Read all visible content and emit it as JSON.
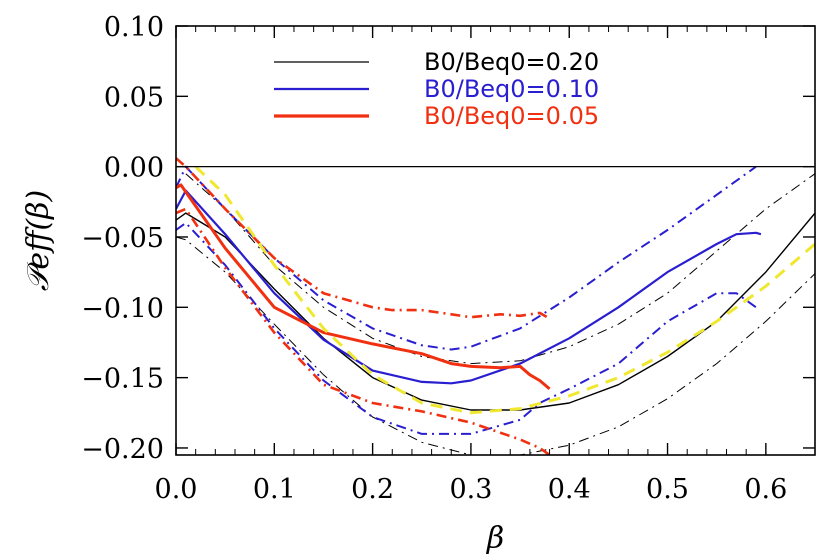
{
  "chart_data": {
    "type": "line",
    "title": "",
    "xlabel": "β",
    "ylabel": "𝒫eff(β)",
    "xlim": [
      0.0,
      0.65
    ],
    "ylim": [
      -0.205,
      0.1
    ],
    "x_ticks": [
      "0.0",
      "0.1",
      "0.2",
      "0.3",
      "0.4",
      "0.5",
      "0.6"
    ],
    "y_ticks": [
      "0.10",
      "0.05",
      "0.00",
      "−0.05",
      "−0.10",
      "−0.15",
      "−0.20"
    ],
    "reference_line": {
      "y": 0.0,
      "color": "#000000"
    },
    "legend": [
      {
        "label": "B0/Beq0=0.20",
        "color": "#000000"
      },
      {
        "label": "B0/Beq0=0.10",
        "color": "#2a1fd0"
      },
      {
        "label": "B0/Beq0=0.05",
        "color": "#f03010"
      }
    ],
    "series": [
      {
        "name": "B0/Beq0=0.20",
        "style": "solid",
        "color": "#000000",
        "width": 1.4,
        "x": [
          0.0,
          0.01,
          0.05,
          0.1,
          0.15,
          0.2,
          0.25,
          0.3,
          0.35,
          0.4,
          0.45,
          0.5,
          0.55,
          0.6,
          0.65
        ],
        "y": [
          -0.038,
          -0.033,
          -0.05,
          -0.087,
          -0.122,
          -0.15,
          -0.166,
          -0.173,
          -0.173,
          -0.168,
          -0.155,
          -0.135,
          -0.11,
          -0.075,
          -0.033
        ]
      },
      {
        "name": "B0/Beq0=0.20 upper",
        "style": "dashdot",
        "color": "#000000",
        "width": 1.0,
        "x": [
          0.01,
          0.05,
          0.1,
          0.15,
          0.2,
          0.25,
          0.3,
          0.35,
          0.4,
          0.45,
          0.5,
          0.55,
          0.6,
          0.65
        ],
        "y": [
          -0.005,
          -0.03,
          -0.07,
          -0.1,
          -0.122,
          -0.135,
          -0.14,
          -0.138,
          -0.128,
          -0.112,
          -0.09,
          -0.06,
          -0.03,
          -0.005
        ]
      },
      {
        "name": "B0/Beq0=0.20 lower",
        "style": "dashdot",
        "color": "#000000",
        "width": 1.0,
        "x": [
          0.0,
          0.01,
          0.05,
          0.1,
          0.15,
          0.2,
          0.25,
          0.3,
          0.35,
          0.4,
          0.45,
          0.5,
          0.55,
          0.6,
          0.65
        ],
        "y": [
          -0.05,
          -0.052,
          -0.075,
          -0.112,
          -0.148,
          -0.178,
          -0.196,
          -0.205,
          -0.205,
          -0.198,
          -0.185,
          -0.165,
          -0.14,
          -0.11,
          -0.076
        ]
      },
      {
        "name": "B0/Beq0=0.10",
        "style": "solid",
        "color": "#2a1fd0",
        "width": 2.2,
        "x": [
          0.0,
          0.01,
          0.05,
          0.1,
          0.15,
          0.2,
          0.25,
          0.28,
          0.3,
          0.35,
          0.4,
          0.45,
          0.5,
          0.55,
          0.57,
          0.59,
          0.595
        ],
        "y": [
          -0.03,
          -0.017,
          -0.048,
          -0.09,
          -0.123,
          -0.145,
          -0.153,
          -0.154,
          -0.152,
          -0.14,
          -0.122,
          -0.1,
          -0.075,
          -0.055,
          -0.048,
          -0.047,
          -0.048
        ]
      },
      {
        "name": "B0/Beq0=0.10 upper",
        "style": "dashdot",
        "color": "#2a1fd0",
        "width": 2.0,
        "x": [
          0.0,
          0.01,
          0.05,
          0.1,
          0.15,
          0.2,
          0.25,
          0.28,
          0.3,
          0.35,
          0.4,
          0.45,
          0.5,
          0.55,
          0.58,
          0.59
        ],
        "y": [
          -0.015,
          0.0,
          -0.03,
          -0.065,
          -0.095,
          -0.115,
          -0.127,
          -0.13,
          -0.128,
          -0.115,
          -0.093,
          -0.068,
          -0.045,
          -0.02,
          -0.005,
          0.0
        ]
      },
      {
        "name": "B0/Beq0=0.10 lower",
        "style": "dashdot",
        "color": "#2a1fd0",
        "width": 2.0,
        "x": [
          0.0,
          0.01,
          0.05,
          0.1,
          0.15,
          0.2,
          0.25,
          0.3,
          0.35,
          0.37,
          0.4,
          0.45,
          0.5,
          0.55,
          0.57,
          0.59
        ],
        "y": [
          -0.045,
          -0.04,
          -0.07,
          -0.115,
          -0.152,
          -0.178,
          -0.19,
          -0.19,
          -0.18,
          -0.168,
          -0.158,
          -0.14,
          -0.11,
          -0.09,
          -0.09,
          -0.1
        ]
      },
      {
        "name": "B0/Beq0=0.05",
        "style": "solid",
        "color": "#f03010",
        "width": 3.0,
        "x": [
          0.0,
          0.005,
          0.01,
          0.05,
          0.1,
          0.15,
          0.2,
          0.25,
          0.28,
          0.3,
          0.33,
          0.35,
          0.36,
          0.37,
          0.38
        ],
        "y": [
          -0.015,
          -0.013,
          -0.018,
          -0.058,
          -0.1,
          -0.118,
          -0.126,
          -0.133,
          -0.14,
          -0.142,
          -0.143,
          -0.142,
          -0.148,
          -0.152,
          -0.158
        ]
      },
      {
        "name": "B0/Beq0=0.05 upper",
        "style": "dashdot",
        "color": "#f03010",
        "width": 2.6,
        "x": [
          0.0,
          0.01,
          0.05,
          0.1,
          0.15,
          0.2,
          0.22,
          0.25,
          0.28,
          0.3,
          0.33,
          0.35,
          0.37,
          0.38
        ],
        "y": [
          0.006,
          0.0,
          -0.03,
          -0.065,
          -0.09,
          -0.1,
          -0.102,
          -0.102,
          -0.105,
          -0.107,
          -0.105,
          -0.106,
          -0.104,
          -0.108
        ]
      },
      {
        "name": "B0/Beq0=0.05 lower",
        "style": "dashdot",
        "color": "#f03010",
        "width": 2.6,
        "x": [
          0.0,
          0.01,
          0.05,
          0.1,
          0.15,
          0.2,
          0.25,
          0.3,
          0.35,
          0.37,
          0.38
        ],
        "y": [
          -0.033,
          -0.03,
          -0.072,
          -0.118,
          -0.155,
          -0.168,
          -0.174,
          -0.182,
          -0.194,
          -0.2,
          -0.205
        ]
      },
      {
        "name": "fit",
        "style": "dashed",
        "color": "#f0e830",
        "width": 3.0,
        "x": [
          0.02,
          0.05,
          0.1,
          0.15,
          0.2,
          0.25,
          0.3,
          0.35,
          0.4,
          0.45,
          0.5,
          0.55,
          0.6,
          0.65
        ],
        "y": [
          0.0,
          -0.02,
          -0.07,
          -0.115,
          -0.148,
          -0.168,
          -0.175,
          -0.172,
          -0.163,
          -0.15,
          -0.132,
          -0.11,
          -0.085,
          -0.055
        ]
      }
    ]
  }
}
